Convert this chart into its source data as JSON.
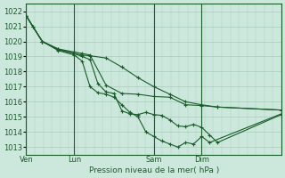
{
  "bg_color": "#cce8dc",
  "grid_color": "#a8ccbc",
  "line_color": "#1a5c2a",
  "marker_color": "#1a5c2a",
  "xlabel": "Pression niveau de la mer( hPa )",
  "ylim": [
    1012.5,
    1022.5
  ],
  "yticks": [
    1013,
    1014,
    1015,
    1016,
    1017,
    1018,
    1019,
    1020,
    1021,
    1022
  ],
  "day_labels": [
    "Ven",
    "Lun",
    "Sam",
    "Dim"
  ],
  "day_positions": [
    0.0,
    0.188,
    0.5,
    0.688
  ],
  "xlim": [
    0.0,
    1.0
  ],
  "lines": [
    {
      "x": [
        0.0,
        0.025,
        0.063,
        0.125,
        0.188,
        0.219,
        0.25,
        0.281,
        0.313,
        0.344,
        0.375,
        0.406,
        0.438,
        0.469,
        0.5,
        0.531,
        0.563,
        0.594,
        0.625,
        0.656,
        0.688,
        0.719,
        1.0
      ],
      "y": [
        1021.7,
        1021.0,
        1020.0,
        1019.4,
        1019.1,
        1018.7,
        1017.0,
        1016.6,
        1016.5,
        1016.3,
        1015.8,
        1015.3,
        1015.0,
        1014.0,
        1013.7,
        1013.4,
        1013.2,
        1013.0,
        1013.3,
        1013.2,
        1013.7,
        1013.3,
        1015.2
      ]
    },
    {
      "x": [
        0.0,
        0.025,
        0.063,
        0.125,
        0.188,
        0.219,
        0.25,
        0.281,
        0.313,
        0.344,
        0.375,
        0.406,
        0.438,
        0.469,
        0.5,
        0.531,
        0.563,
        0.594,
        0.625,
        0.656,
        0.688,
        0.719,
        0.75,
        1.0
      ],
      "y": [
        1021.7,
        1021.0,
        1020.0,
        1019.5,
        1019.2,
        1019.0,
        1018.8,
        1017.2,
        1016.65,
        1016.55,
        1015.4,
        1015.2,
        1015.15,
        1015.3,
        1015.15,
        1015.1,
        1014.8,
        1014.4,
        1014.35,
        1014.5,
        1014.3,
        1013.8,
        1013.3,
        1015.15
      ]
    },
    {
      "x": [
        0.0,
        0.063,
        0.125,
        0.188,
        0.219,
        0.25,
        0.313,
        0.375,
        0.438,
        0.5,
        0.563,
        0.625,
        0.688,
        0.75,
        1.0
      ],
      "y": [
        1021.7,
        1020.0,
        1019.5,
        1019.3,
        1019.2,
        1019.1,
        1017.1,
        1016.55,
        1016.5,
        1016.35,
        1016.3,
        1015.8,
        1015.75,
        1015.65,
        1015.45
      ]
    },
    {
      "x": [
        0.0,
        0.063,
        0.125,
        0.188,
        0.219,
        0.25,
        0.313,
        0.375,
        0.438,
        0.5,
        0.563,
        0.625,
        0.688,
        0.75,
        1.0
      ],
      "y": [
        1021.7,
        1020.0,
        1019.45,
        1019.2,
        1019.1,
        1019.05,
        1018.9,
        1018.3,
        1017.6,
        1017.0,
        1016.5,
        1016.0,
        1015.8,
        1015.65,
        1015.45
      ]
    }
  ],
  "figsize": [
    3.2,
    2.0
  ],
  "dpi": 100
}
